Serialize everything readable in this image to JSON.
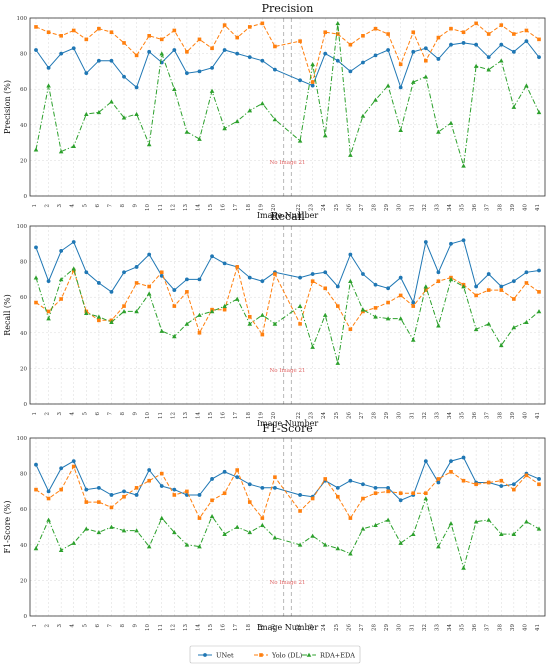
{
  "chart_data": {
    "type": "line",
    "x": [
      1,
      2,
      3,
      4,
      5,
      6,
      7,
      8,
      9,
      10,
      11,
      12,
      13,
      14,
      15,
      16,
      17,
      18,
      19,
      20,
      22,
      23,
      24,
      25,
      26,
      27,
      28,
      29,
      30,
      31,
      32,
      33,
      34,
      35,
      36,
      37,
      38,
      39,
      40,
      41
    ],
    "x_tick_labels": [
      "1",
      "2",
      "3",
      "4",
      "5",
      "6",
      "7",
      "8",
      "9",
      "10",
      "11",
      "12",
      "13",
      "14",
      "15",
      "16",
      "17",
      "18",
      "19",
      "20",
      "22",
      "23",
      "24",
      "25",
      "26",
      "27",
      "28",
      "29",
      "30",
      "31",
      "32",
      "33",
      "34",
      "35",
      "36",
      "37",
      "38",
      "39",
      "40",
      "41"
    ],
    "missing_x": 21,
    "annotation": "No Image 21",
    "xlabel": "Image Number",
    "ylim": [
      0,
      100
    ],
    "yticks": [
      0,
      20,
      40,
      60,
      80,
      100
    ],
    "grid": true,
    "legend": {
      "placement": "bottom-center",
      "entries": [
        "UNet",
        "Yolo (DL)",
        "RDA+EDA"
      ]
    },
    "series_styles": [
      {
        "name": "UNet",
        "color": "#1f77b4",
        "marker": "circle",
        "dash": "solid"
      },
      {
        "name": "Yolo (DL)",
        "color": "#ff7f0e",
        "marker": "square",
        "dash": "dashed"
      },
      {
        "name": "RDA+EDA",
        "color": "#2ca02c",
        "marker": "triangle",
        "dash": "dashdot"
      }
    ],
    "panels": [
      {
        "title": "Precision",
        "ylabel": "Precision (%)",
        "series": [
          {
            "name": "UNet",
            "values": [
              82,
              72,
              80,
              83,
              69,
              76,
              76,
              67,
              61,
              81,
              75,
              82,
              69,
              70,
              72,
              82,
              80,
              78,
              76,
              71,
              65,
              62,
              80,
              76,
              70,
              75,
              79,
              82,
              61,
              81,
              83,
              77,
              85,
              86,
              85,
              78,
              85,
              81,
              87,
              78
            ]
          },
          {
            "name": "Yolo (DL)",
            "values": [
              95,
              92,
              90,
              93,
              88,
              94,
              92,
              86,
              79,
              90,
              88,
              93,
              81,
              88,
              83,
              96,
              89,
              95,
              97,
              84,
              87,
              64,
              92,
              91,
              85,
              90,
              94,
              91,
              74,
              92,
              76,
              89,
              94,
              92,
              97,
              91,
              96,
              91,
              93,
              88
            ]
          },
          {
            "name": "RDA+EDA",
            "values": [
              26,
              62,
              25,
              28,
              46,
              47,
              53,
              44,
              46,
              29,
              80,
              60,
              36,
              32,
              59,
              38,
              42,
              48,
              52,
              43,
              31,
              74,
              34,
              97,
              23,
              45,
              54,
              62,
              37,
              64,
              67,
              36,
              41,
              17,
              73,
              71,
              76,
              50,
              62,
              47
            ]
          }
        ]
      },
      {
        "title": "Recall",
        "ylabel": "Recall (%)",
        "series": [
          {
            "name": "UNet",
            "values": [
              88,
              69,
              86,
              91,
              74,
              68,
              63,
              74,
              77,
              84,
              72,
              64,
              70,
              70,
              83,
              79,
              77,
              71,
              69,
              74,
              71,
              73,
              74,
              66,
              84,
              73,
              67,
              65,
              71,
              57,
              91,
              74,
              90,
              92,
              66,
              73,
              66,
              69,
              74,
              75
            ]
          },
          {
            "name": "Yolo (DL)",
            "values": [
              57,
              52,
              59,
              75,
              52,
              47,
              47,
              55,
              68,
              66,
              74,
              55,
              63,
              40,
              53,
              53,
              77,
              49,
              39,
              73,
              45,
              69,
              65,
              55,
              42,
              52,
              54,
              57,
              61,
              55,
              64,
              69,
              71,
              67,
              61,
              64,
              64,
              59,
              68,
              63
            ]
          },
          {
            "name": "RDA+EDA",
            "values": [
              71,
              48,
              70,
              76,
              51,
              49,
              46,
              52,
              52,
              62,
              41,
              38,
              45,
              50,
              52,
              55,
              59,
              45,
              50,
              45,
              55,
              32,
              50,
              23,
              69,
              53,
              49,
              48,
              48,
              36,
              66,
              44,
              70,
              66,
              42,
              45,
              33,
              43,
              46,
              52
            ]
          }
        ]
      },
      {
        "title": "F1-Score",
        "ylabel": "F1-Score (%)",
        "series": [
          {
            "name": "UNet",
            "values": [
              85,
              70,
              83,
              87,
              71,
              72,
              68,
              70,
              68,
              82,
              73,
              71,
              68,
              68,
              77,
              81,
              78,
              74,
              72,
              72,
              68,
              67,
              76,
              72,
              76,
              74,
              72,
              72,
              65,
              68,
              87,
              75,
              87,
              89,
              75,
              75,
              73,
              74,
              80,
              77
            ]
          },
          {
            "name": "Yolo (DL)",
            "values": [
              71,
              66,
              71,
              84,
              64,
              64,
              61,
              67,
              72,
              76,
              80,
              68,
              70,
              55,
              65,
              69,
              82,
              64,
              55,
              78,
              59,
              66,
              77,
              67,
              55,
              66,
              69,
              70,
              69,
              69,
              69,
              77,
              81,
              76,
              74,
              75,
              76,
              71,
              79,
              74
            ]
          },
          {
            "name": "RDA+EDA",
            "values": [
              38,
              54,
              37,
              41,
              49,
              47,
              50,
              48,
              48,
              39,
              55,
              47,
              40,
              39,
              56,
              46,
              50,
              47,
              51,
              44,
              40,
              45,
              40,
              38,
              35,
              49,
              51,
              54,
              41,
              46,
              66,
              39,
              52,
              27,
              53,
              54,
              46,
              46,
              53,
              49
            ]
          }
        ]
      }
    ]
  }
}
